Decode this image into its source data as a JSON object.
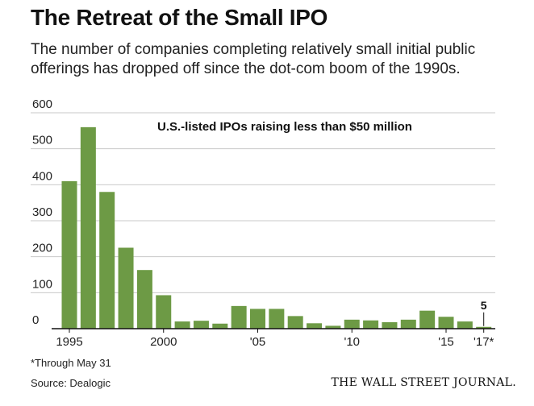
{
  "header": {
    "title": "The Retreat of the Small IPO",
    "subtitle": "The number of companies completing relatively small initial public offerings has dropped off since the dot-com boom of the 1990s."
  },
  "footer": {
    "footnote": "*Through May 31",
    "source": "Source: Dealogic",
    "publisher": "THE WALL STREET JOURNAL."
  },
  "colors": {
    "bar": "#6d9a45",
    "grid": "#c9c9c9",
    "axis": "#111111"
  },
  "chart_data": {
    "type": "bar",
    "title": "U.S.-listed IPOs raising less than $50 million",
    "categories": [
      "1995",
      "1996",
      "1997",
      "1998",
      "1999",
      "2000",
      "2001",
      "2002",
      "2003",
      "2004",
      "2005",
      "2006",
      "2007",
      "2008",
      "2009",
      "2010",
      "2011",
      "2012",
      "2013",
      "2014",
      "2015",
      "2016",
      "2017"
    ],
    "values": [
      410,
      560,
      380,
      225,
      163,
      93,
      20,
      22,
      14,
      63,
      55,
      55,
      35,
      15,
      8,
      25,
      23,
      18,
      25,
      50,
      33,
      20,
      5
    ],
    "x_tick_labels": [
      {
        "index": 0,
        "label": "1995"
      },
      {
        "index": 5,
        "label": "2000"
      },
      {
        "index": 10,
        "label": "'05"
      },
      {
        "index": 15,
        "label": "'10"
      },
      {
        "index": 20,
        "label": "'15"
      },
      {
        "index": 22,
        "label": "'17*"
      }
    ],
    "y_ticks": [
      0,
      100,
      200,
      300,
      400,
      500,
      600
    ],
    "ylim": [
      0,
      600
    ],
    "grid": true,
    "annotations": [
      {
        "index": 22,
        "text": "5"
      }
    ]
  }
}
